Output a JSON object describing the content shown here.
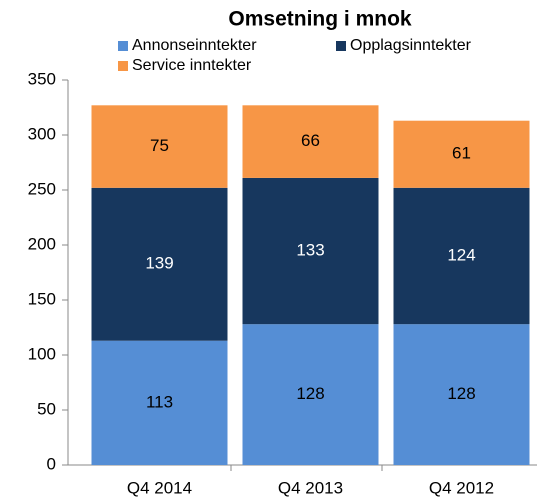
{
  "chart_data": {
    "type": "stacked_bar",
    "title": "Omsetning i mnok",
    "categories": [
      "Q4 2014",
      "Q4 2013",
      "Q4 2012"
    ],
    "series": [
      {
        "name": "Annonseinntekter",
        "color": "#558ed5",
        "values": [
          113,
          128,
          128
        ]
      },
      {
        "name": "Opplagsinntekter",
        "color": "#17375e",
        "values": [
          139,
          133,
          124
        ]
      },
      {
        "name": "Service inntekter",
        "color": "#f79646",
        "values": [
          75,
          66,
          61
        ]
      }
    ],
    "ylim": [
      0,
      350
    ],
    "yticks": [
      0,
      50,
      100,
      150,
      200,
      250,
      300,
      350
    ],
    "legend": "top"
  }
}
